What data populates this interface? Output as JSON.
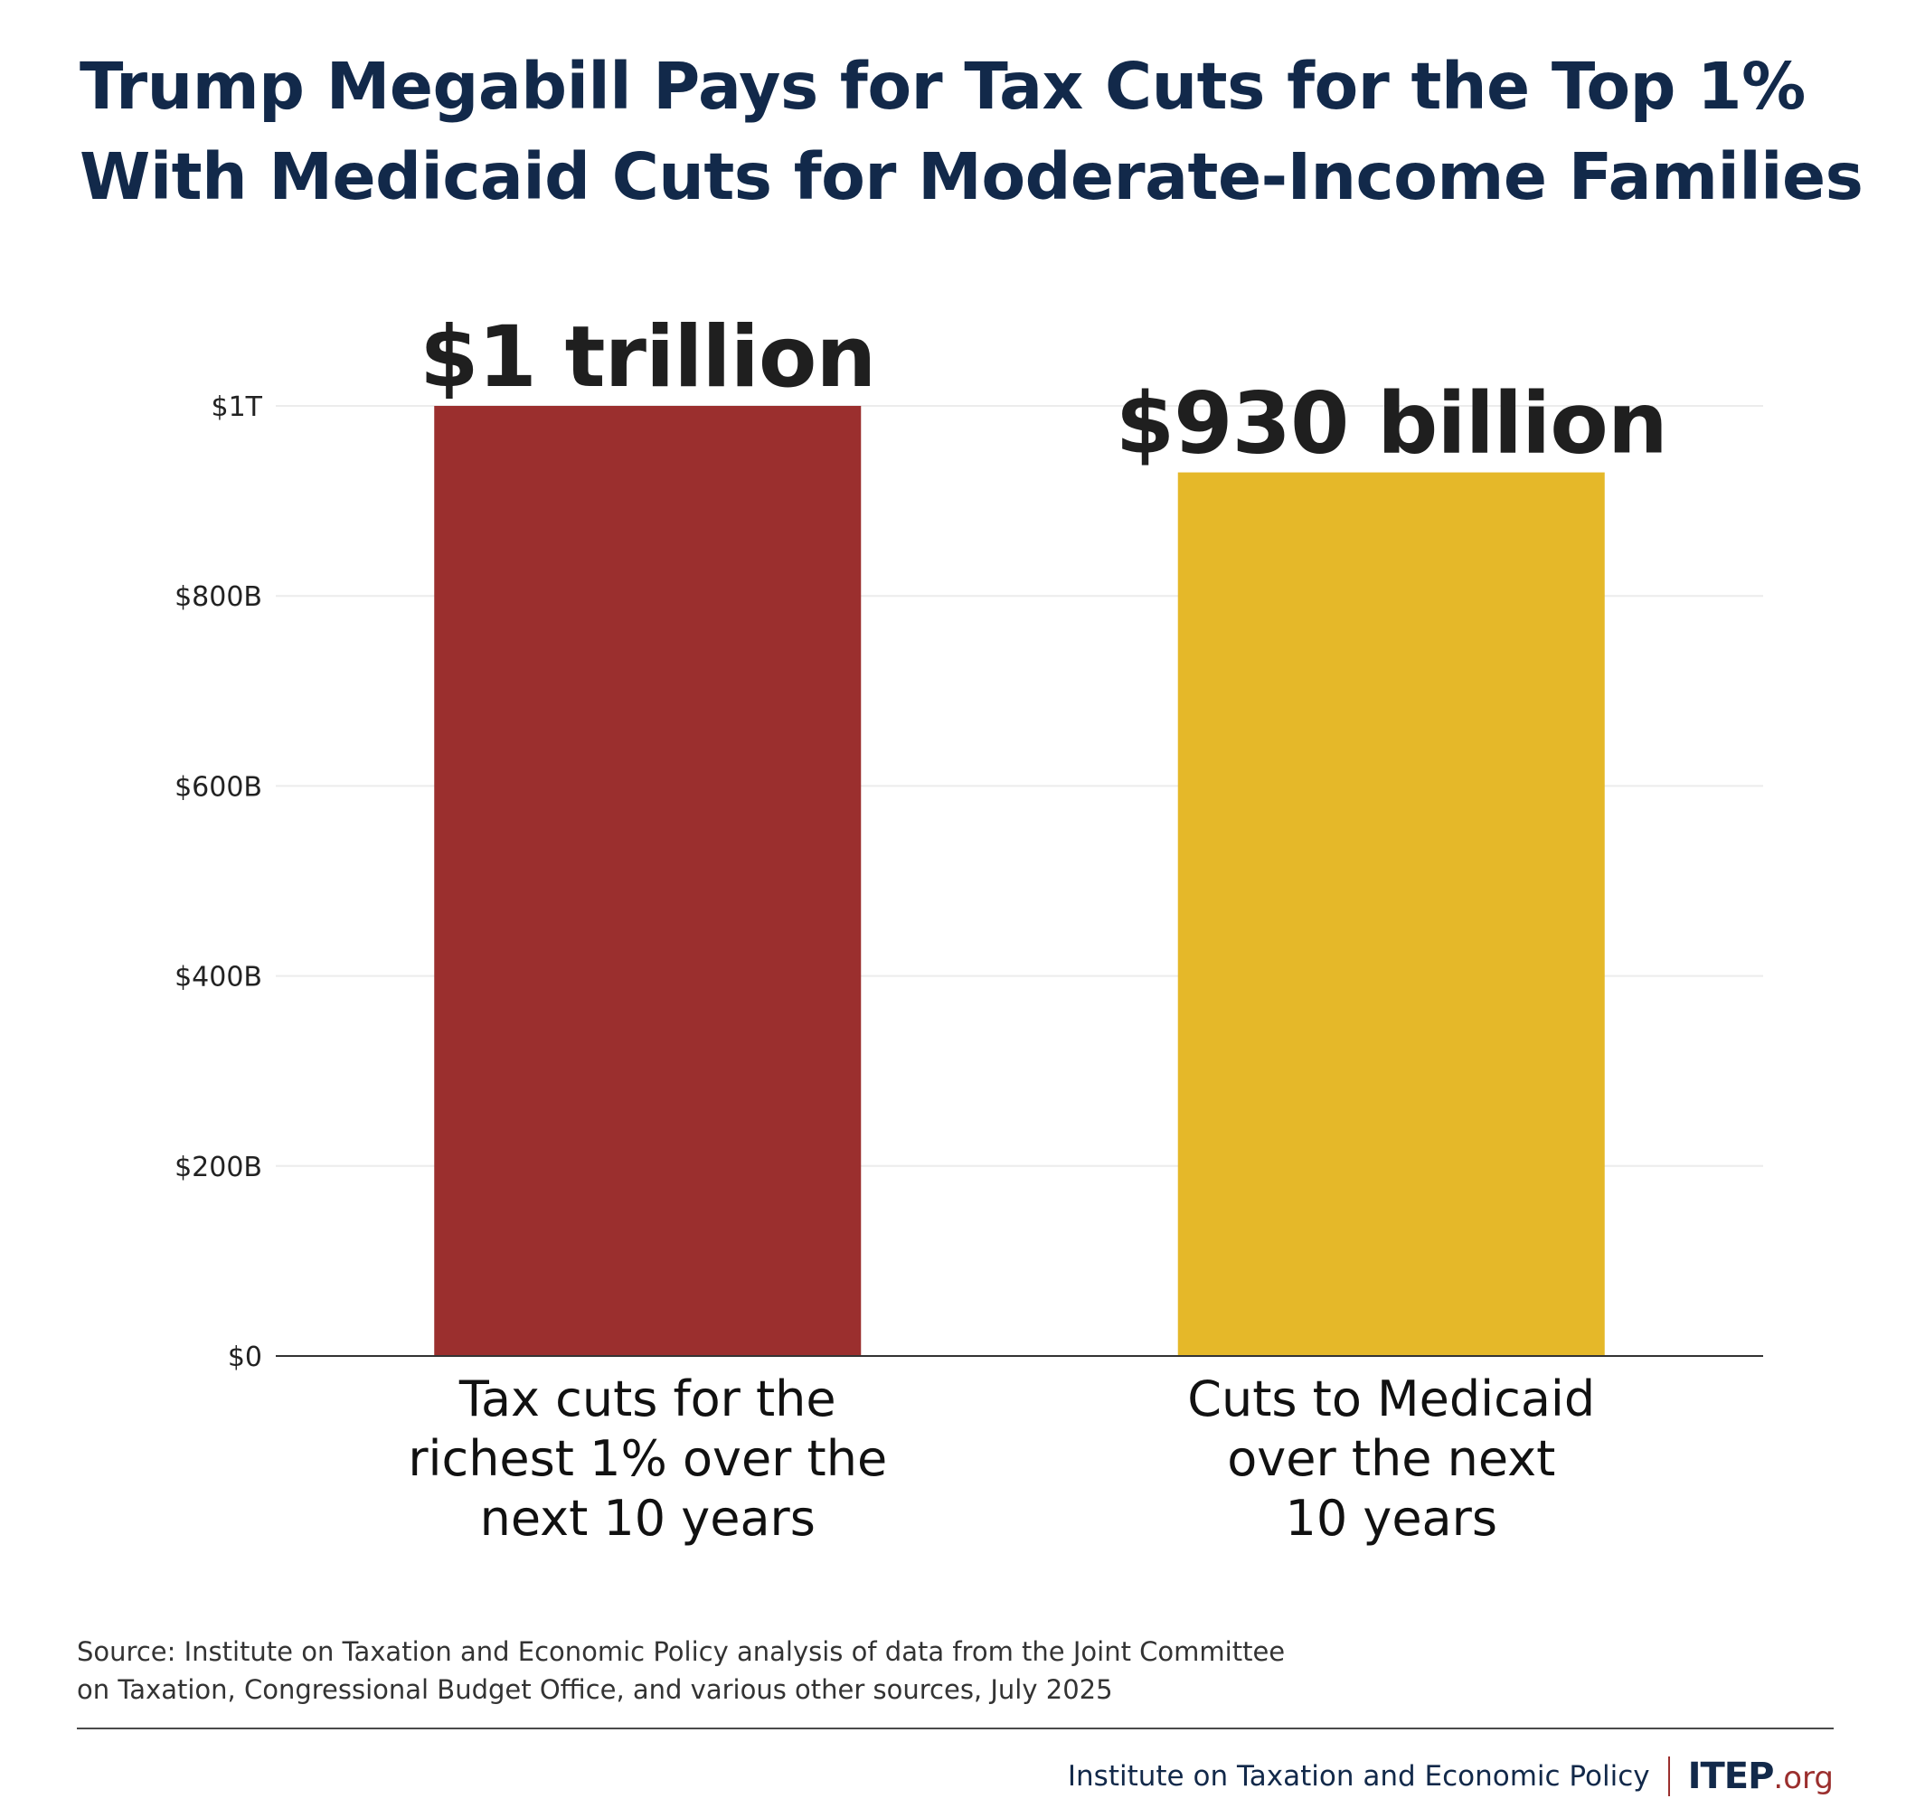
{
  "header": {
    "title_line1": "Trump Megabill Pays for Tax Cuts for the Top 1%",
    "title_line2": "With Medicaid Cuts for Moderate-Income Families"
  },
  "chart_data": {
    "type": "bar",
    "unit": "billions of dollars",
    "categories": [
      [
        "Tax cuts for the",
        "richest 1% over the",
        "next 10 years"
      ],
      [
        "Cuts to Medicaid",
        "over the next",
        "10 years"
      ]
    ],
    "values": [
      1000,
      930
    ],
    "data_labels": [
      "$1 trillion",
      "$930 billion"
    ],
    "colors": [
      "#9b2f2e",
      "#e5b829"
    ],
    "ylim": [
      0,
      1000
    ],
    "yticks": [
      {
        "value": 0,
        "label": "$0"
      },
      {
        "value": 200,
        "label": "$200B"
      },
      {
        "value": 400,
        "label": "$400B"
      },
      {
        "value": 600,
        "label": "$600B"
      },
      {
        "value": 800,
        "label": "$800B"
      },
      {
        "value": 1000,
        "label": "$1T"
      }
    ],
    "grid": true,
    "legend": "none"
  },
  "footer": {
    "source_line1": "Source: Institute on Taxation and Economic Policy analysis of data from the Joint Committee",
    "source_line2": "on Taxation, Congressional Budget Office, and various other sources, July 2025",
    "org_name": "Institute on Taxation and Economic Policy",
    "logo_main": "ITEP",
    "logo_suffix": ".org"
  }
}
